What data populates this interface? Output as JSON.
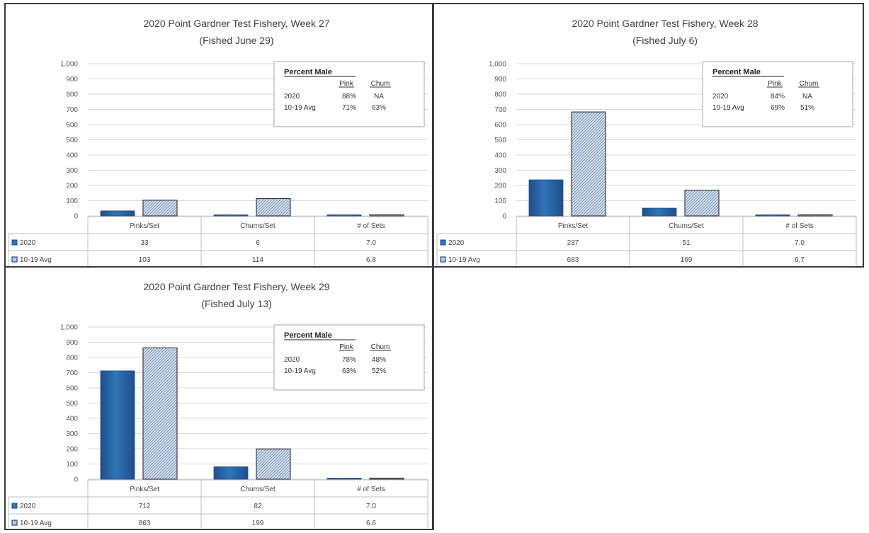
{
  "chart_data": [
    {
      "type": "bar",
      "title": "2020 Point Gardner Test Fishery, Week 27",
      "subtitle": "(Fished June 29)",
      "categories": [
        "Pinks/Set",
        "Chums/Set",
        "# of Sets"
      ],
      "series": [
        {
          "name": "2020",
          "values": [
            33,
            6,
            7.0
          ],
          "labels": [
            "33",
            "6",
            "7.0"
          ],
          "color": "#2e75b6"
        },
        {
          "name": "10-19 Avg",
          "values": [
            103,
            114,
            6.8
          ],
          "labels": [
            "103",
            "114",
            "6.8"
          ],
          "color": "#dbe5f1"
        }
      ],
      "ylim": [
        0,
        1000
      ],
      "yticks": [
        "1,000",
        "900",
        "800",
        "700",
        "600",
        "500",
        "400",
        "300",
        "200",
        "100",
        "0"
      ],
      "grid": true,
      "inset": {
        "heading": "Percent Male",
        "columns": [
          "Pink",
          "Chum"
        ],
        "rows": [
          {
            "label": "2020",
            "pink": "88%",
            "chum": "NA"
          },
          {
            "label": "10-19 Avg",
            "pink": "71%",
            "chum": "63%"
          }
        ]
      }
    },
    {
      "type": "bar",
      "title": "2020 Point Gardner Test Fishery, Week 28",
      "subtitle": "(Fished July 6)",
      "categories": [
        "Pinks/Set",
        "Chums/Set",
        "# of Sets"
      ],
      "series": [
        {
          "name": "2020",
          "values": [
            237,
            51,
            7.0
          ],
          "labels": [
            "237",
            "51",
            "7.0"
          ],
          "color": "#2e75b6"
        },
        {
          "name": "10-19 Avg",
          "values": [
            683,
            169,
            6.7
          ],
          "labels": [
            "683",
            "169",
            "6.7"
          ],
          "color": "#dbe5f1"
        }
      ],
      "ylim": [
        0,
        1000
      ],
      "yticks": [
        "1,000",
        "900",
        "800",
        "700",
        "600",
        "500",
        "400",
        "300",
        "200",
        "100",
        "0"
      ],
      "grid": true,
      "inset": {
        "heading": "Percent Male",
        "columns": [
          "Pink",
          "Chum"
        ],
        "rows": [
          {
            "label": "2020",
            "pink": "84%",
            "chum": "NA"
          },
          {
            "label": "10-19 Avg",
            "pink": "69%",
            "chum": "51%"
          }
        ]
      }
    },
    {
      "type": "bar",
      "title": "2020 Point Gardner Test Fishery, Week 29",
      "subtitle": "(Fished July 13)",
      "categories": [
        "Pinks/Set",
        "Chums/Set",
        "# of Sets"
      ],
      "series": [
        {
          "name": "2020",
          "values": [
            712,
            82,
            7.0
          ],
          "labels": [
            "712",
            "82",
            "7.0"
          ],
          "color": "#2e75b6"
        },
        {
          "name": "10-19 Avg",
          "values": [
            863,
            199,
            6.6
          ],
          "labels": [
            "863",
            "199",
            "6.6"
          ],
          "color": "#dbe5f1"
        }
      ],
      "ylim": [
        0,
        1000
      ],
      "yticks": [
        "1,000",
        "900",
        "800",
        "700",
        "600",
        "500",
        "400",
        "300",
        "200",
        "100",
        "0"
      ],
      "grid": true,
      "inset": {
        "heading": "Percent Male",
        "columns": [
          "Pink",
          "Chum"
        ],
        "rows": [
          {
            "label": "2020",
            "pink": "78%",
            "chum": "48%"
          },
          {
            "label": "10-19 Avg",
            "pink": "63%",
            "chum": "52%"
          }
        ]
      }
    }
  ]
}
